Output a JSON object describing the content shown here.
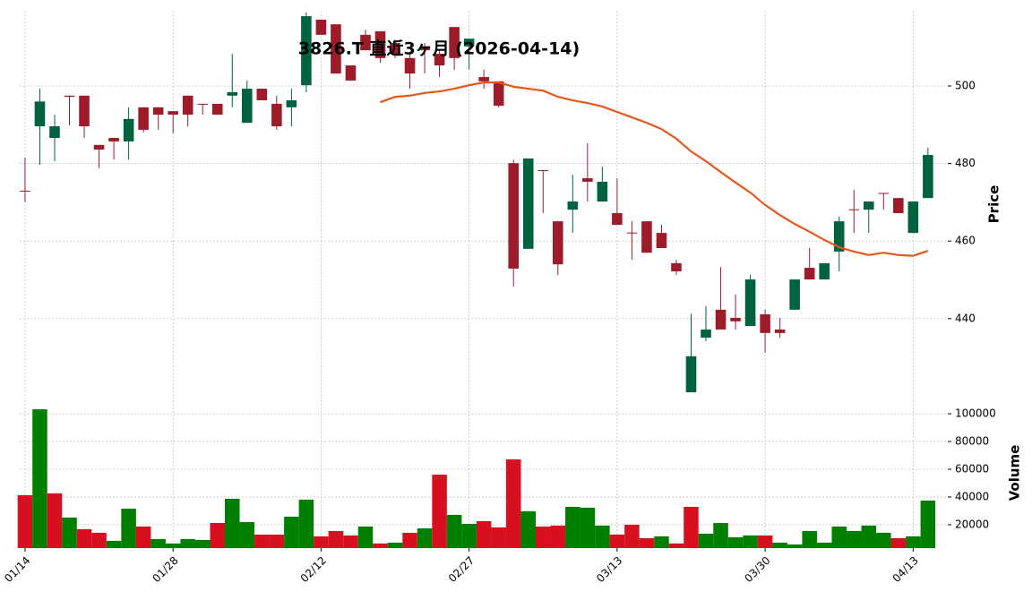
{
  "chart_data": {
    "type": "candlestick",
    "title": "3826.T 直近3ヶ月 (2026-04-14)",
    "categories": [
      "01/14",
      null,
      null,
      null,
      null,
      null,
      null,
      null,
      null,
      null,
      "01/28",
      null,
      null,
      null,
      null,
      null,
      null,
      null,
      null,
      null,
      "02/12",
      null,
      null,
      null,
      null,
      null,
      null,
      null,
      null,
      null,
      "02/27",
      null,
      null,
      null,
      null,
      null,
      null,
      null,
      null,
      null,
      "03/13",
      null,
      null,
      null,
      null,
      null,
      null,
      null,
      null,
      null,
      "03/30",
      null,
      null,
      null,
      null,
      null,
      null,
      null,
      null,
      null,
      "04/13",
      null
    ],
    "open": [
      473.0,
      489.6,
      486.6,
      497.5,
      497.5,
      484.8,
      486.6,
      485.7,
      494.5,
      494.5,
      493.5,
      497.5,
      495.4,
      495.4,
      497.5,
      490.5,
      499.3,
      495.4,
      494.5,
      500.2,
      517.1,
      515.9,
      505.3,
      513.2,
      514.1,
      511.1,
      507.2,
      510.2,
      508.3,
      515.2,
      510.2,
      502.3,
      501.2,
      480.1,
      458.0,
      478.3,
      465.1,
      468.1,
      476.2,
      470.2,
      467.2,
      462.2,
      465.1,
      462.1,
      454.3,
      421.0,
      435.1,
      442.3,
      440.2,
      438.1,
      441.1,
      437.2,
      442.3,
      453.1,
      450.1,
      457.3,
      468.2,
      468.1,
      472.4,
      471.1,
      462.1,
      471.1
    ],
    "high": [
      481.5,
      499.3,
      492.6,
      497.5,
      497.5,
      484.8,
      486.6,
      494.5,
      494.5,
      494.5,
      493.5,
      497.5,
      495.4,
      495.4,
      508.3,
      501.4,
      499.3,
      497.5,
      499.3,
      519.0,
      517.1,
      515.9,
      505.3,
      514.5,
      514.1,
      512.0,
      508.3,
      511.1,
      509.2,
      515.2,
      512.2,
      504.2,
      501.2,
      481.0,
      481.3,
      478.3,
      465.1,
      477.1,
      485.2,
      479.2,
      476.2,
      465.1,
      465.1,
      464.2,
      455.2,
      441.3,
      443.2,
      453.3,
      446.2,
      451.3,
      442.3,
      440.2,
      450.1,
      458.2,
      454.3,
      466.3,
      473.2,
      470.2,
      472.4,
      471.1,
      470.2,
      484.1
    ],
    "low": [
      470.0,
      479.7,
      480.6,
      489.8,
      486.6,
      478.8,
      481.0,
      481.0,
      488.0,
      488.7,
      487.8,
      489.6,
      492.6,
      492.6,
      494.5,
      490.5,
      496.3,
      488.7,
      489.6,
      498.4,
      513.2,
      503.2,
      501.4,
      509.2,
      506.0,
      507.2,
      499.3,
      503.2,
      502.3,
      504.2,
      504.2,
      499.3,
      494.5,
      448.3,
      458.0,
      467.2,
      451.3,
      462.1,
      470.2,
      470.2,
      464.2,
      455.2,
      457.0,
      458.2,
      451.3,
      421.0,
      434.2,
      437.2,
      437.2,
      438.1,
      431.2,
      435.1,
      442.3,
      450.1,
      450.1,
      452.2,
      462.1,
      462.1,
      468.1,
      467.2,
      462.1,
      471.1
    ],
    "close": [
      472.8,
      496.0,
      489.6,
      497.2,
      489.6,
      483.6,
      485.7,
      491.5,
      488.7,
      492.6,
      492.6,
      492.6,
      495.2,
      492.6,
      498.4,
      499.3,
      496.3,
      489.6,
      496.3,
      518.0,
      513.2,
      503.2,
      501.4,
      509.2,
      507.2,
      508.3,
      503.2,
      509.2,
      505.3,
      507.2,
      512.2,
      501.2,
      494.9,
      452.9,
      481.3,
      478.1,
      454.0,
      470.2,
      475.3,
      475.3,
      464.2,
      462.0,
      457.0,
      458.2,
      452.2,
      430.3,
      437.2,
      437.2,
      439.3,
      450.1,
      436.3,
      436.3,
      450.1,
      450.1,
      454.3,
      465.1,
      468.0,
      470.2,
      472.2,
      467.2,
      470.2,
      482.2
    ],
    "moving_average": {
      "color": "#e8561a",
      "values": [
        null,
        null,
        null,
        null,
        null,
        null,
        null,
        null,
        null,
        null,
        null,
        null,
        null,
        null,
        null,
        null,
        null,
        null,
        null,
        null,
        null,
        null,
        null,
        null,
        495.8,
        497.2,
        497.5,
        498.2,
        498.6,
        499.3,
        500.2,
        500.9,
        500.9,
        499.8,
        499.3,
        498.8,
        497.2,
        496.3,
        495.6,
        494.7,
        493.3,
        491.9,
        490.5,
        488.9,
        486.4,
        483.1,
        480.6,
        477.8,
        475.1,
        472.5,
        469.3,
        466.7,
        464.4,
        462.4,
        460.3,
        458.4,
        457.3,
        456.4,
        457.0,
        456.4,
        456.2,
        457.5
      ]
    },
    "up_color": "#006340",
    "down_color": "#9e1b2a",
    "ylabel": "Price",
    "ylim": [
      419.4,
      519.4
    ],
    "yticks": [
      440,
      460,
      480,
      500
    ],
    "grid": true,
    "volume": {
      "ylabel": "Volume",
      "up_color": "#007f00",
      "down_color": "#d80f1e",
      "ylim": [
        3200,
        109700
      ],
      "yticks": [
        20000,
        40000,
        60000,
        80000,
        100000
      ],
      "values": [
        41300,
        103200,
        42600,
        25200,
        16800,
        14200,
        8400,
        31600,
        18700,
        9700,
        6500,
        9700,
        9000,
        21300,
        38700,
        21900,
        12900,
        12900,
        25800,
        38100,
        11600,
        15500,
        12300,
        18700,
        6500,
        7100,
        14200,
        17400,
        56100,
        27100,
        20600,
        22600,
        18100,
        67100,
        29700,
        18700,
        19400,
        32900,
        32300,
        19400,
        12900,
        20000,
        10300,
        11600,
        6500,
        32900,
        13500,
        21300,
        11000,
        12300,
        12300,
        7100,
        5800,
        15500,
        7100,
        18700,
        15500,
        19400,
        14200,
        10300,
        11600,
        37400
      ]
    }
  }
}
